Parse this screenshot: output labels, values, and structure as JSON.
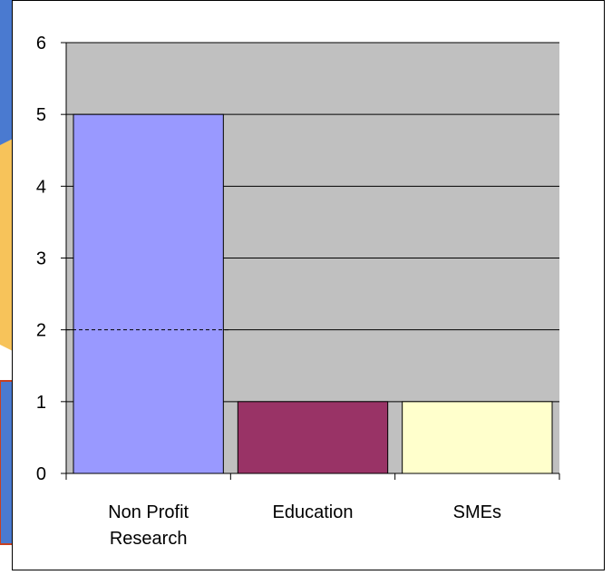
{
  "chart_data": {
    "type": "bar",
    "categories": [
      [
        "Non Profit",
        "Research"
      ],
      [
        "Education"
      ],
      [
        "SMEs"
      ]
    ],
    "values": [
      5,
      1,
      1
    ],
    "bar_colors": [
      "#9999ff",
      "#993366",
      "#ffffcc"
    ],
    "ylim": [
      0,
      6
    ],
    "yticks": [
      0,
      1,
      2,
      3,
      4,
      5,
      6
    ],
    "grid": true,
    "plot_background": "#c0c0c0",
    "title": "",
    "xlabel": "",
    "ylabel": "",
    "dashed_reference_value": 2
  }
}
